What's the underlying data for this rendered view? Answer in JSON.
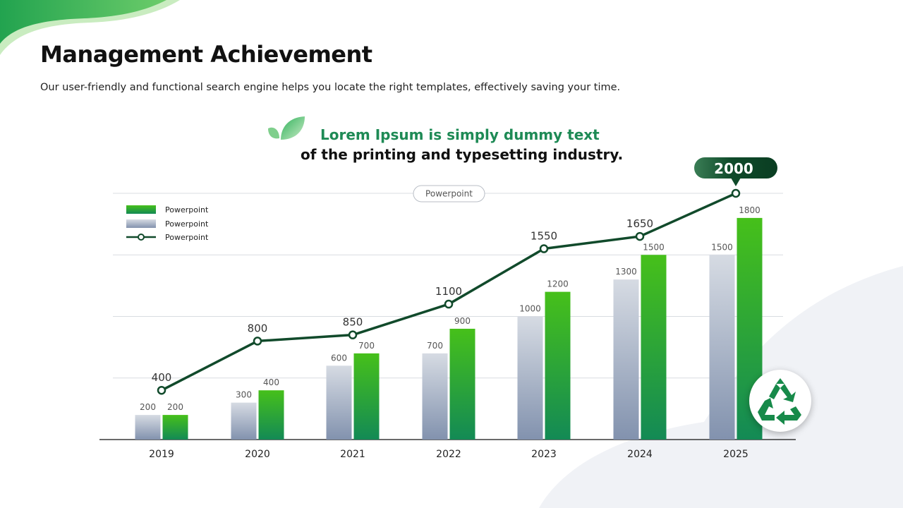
{
  "page": {
    "title": "Management Achievement",
    "subtitle": "Our user-friendly and functional search engine helps you locate the right templates, effectively saving your time.",
    "headline_line1": "Lorem Ipsum is simply dummy text",
    "headline_line2": "of the printing and typesetting industry.",
    "icons": [
      "leaf-icon",
      "recycle-icon"
    ]
  },
  "colors": {
    "accent_green": "#1e8a55",
    "line_green": "#114a2b",
    "bar_green_top": "#46c01a",
    "bar_green_bottom": "#138a55",
    "bar_gray_top": "#d6dbe3",
    "bar_gray_bottom": "#8292ae"
  },
  "chart_data": {
    "type": "bar",
    "title": "Powerpoint",
    "categories": [
      "2019",
      "2020",
      "2021",
      "2022",
      "2023",
      "2024",
      "2025"
    ],
    "series": [
      {
        "name": "Powerpoint",
        "kind": "bar",
        "style": "gray",
        "values": [
          200,
          300,
          600,
          700,
          1000,
          1300,
          1500
        ]
      },
      {
        "name": "Powerpoint",
        "kind": "bar",
        "style": "green",
        "values": [
          200,
          400,
          700,
          900,
          1200,
          1500,
          1800
        ]
      },
      {
        "name": "Powerpoint",
        "kind": "line",
        "style": "line",
        "values": [
          400,
          800,
          850,
          1100,
          1550,
          1650,
          2000
        ]
      }
    ],
    "legend_labels": [
      "Powerpoint",
      "Powerpoint",
      "Powerpoint"
    ],
    "legend": "top-left",
    "ylim": [
      0,
      2000
    ],
    "grid": true,
    "highlight_value": "2000"
  }
}
